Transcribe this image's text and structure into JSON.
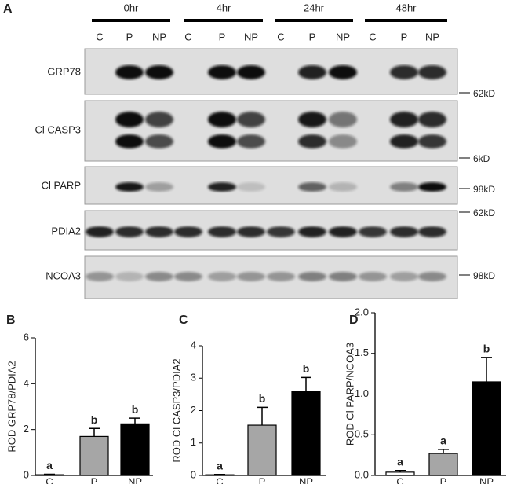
{
  "blot": {
    "panel": "A",
    "timepoints": [
      "0hr",
      "4hr",
      "24hr",
      "48hr"
    ],
    "lanes": [
      "C",
      "P",
      "NP",
      "C",
      "P",
      "NP",
      "C",
      "P",
      "NP",
      "C",
      "P",
      "NP"
    ],
    "proteins": [
      "GRP78",
      "Cl CASP3",
      "Cl PARP",
      "PDIA2",
      "NCOA3"
    ],
    "markers": [
      "62kD",
      "6kD",
      "98kD",
      "62kD",
      "98kD"
    ]
  },
  "chart_data": [
    {
      "panel": "B",
      "type": "bar",
      "ylabel": "ROD GRP78/PDIA2",
      "categories": [
        "C",
        "P",
        "NP"
      ],
      "values": [
        0.03,
        1.7,
        2.25
      ],
      "errors": [
        0.02,
        0.35,
        0.25
      ],
      "letters": [
        "a",
        "b",
        "b"
      ],
      "colors": [
        "#ffffff",
        "#a6a6a6",
        "#000000"
      ],
      "ylim": [
        0,
        6
      ],
      "yticks": [
        0,
        2,
        4,
        6
      ]
    },
    {
      "panel": "C",
      "type": "bar",
      "ylabel": "ROD Cl CASP3/PDIA2",
      "categories": [
        "C",
        "P",
        "NP"
      ],
      "values": [
        0.02,
        1.55,
        2.6
      ],
      "errors": [
        0.01,
        0.55,
        0.42
      ],
      "letters": [
        "a",
        "b",
        "b"
      ],
      "colors": [
        "#ffffff",
        "#a6a6a6",
        "#000000"
      ],
      "ylim": [
        0,
        4
      ],
      "yticks": [
        0,
        1,
        2,
        3,
        4
      ]
    },
    {
      "panel": "D",
      "type": "bar",
      "ylabel": "ROD Cl PARP/NCOA3",
      "categories": [
        "C",
        "P",
        "NP"
      ],
      "values": [
        0.04,
        0.27,
        1.15
      ],
      "errors": [
        0.02,
        0.05,
        0.3
      ],
      "letters": [
        "a",
        "a",
        "b"
      ],
      "colors": [
        "#ffffff",
        "#a6a6a6",
        "#000000"
      ],
      "ylim": [
        0,
        2
      ],
      "yticks": [
        {
          "value": 0,
          "label": "0.0"
        },
        0.5,
        {
          "value": 1,
          "label": "1.0"
        },
        1.5,
        {
          "value": 2,
          "label": "2.0"
        }
      ]
    }
  ]
}
